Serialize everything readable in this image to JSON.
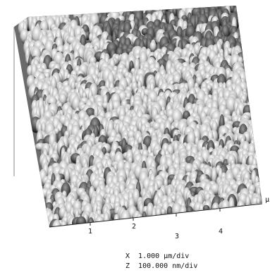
{
  "axis": {
    "tick_labels": [
      "1",
      "2",
      "3",
      "4"
    ],
    "unit": "μ"
  },
  "scale": {
    "x": "X  1.000 μm/div",
    "z": "Z  100.000 nm/div"
  }
}
